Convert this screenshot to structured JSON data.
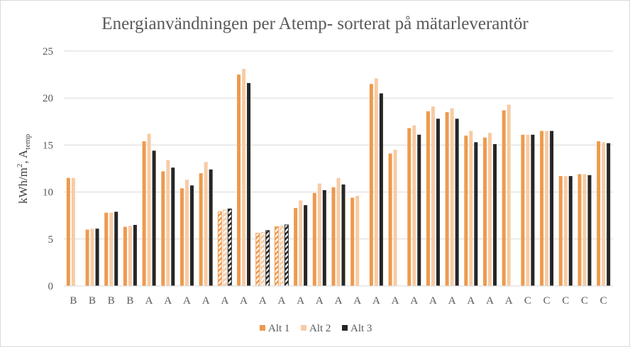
{
  "chart_data": {
    "type": "bar",
    "title": "Energianvändningen per Atemp- sorterat på mätarleverantör",
    "ylabel": "kWh/m², Atemp",
    "ylabel_main": "kWh/m",
    "ylabel_sup": "2",
    "ylabel_sep": ", A",
    "ylabel_sub": "temp",
    "xlabel": "",
    "ylim": [
      0,
      25
    ],
    "yticks": [
      "0",
      "5",
      "10",
      "15",
      "20",
      "25"
    ],
    "grid": "horizontal",
    "legend_position": "bottom",
    "categories": [
      "B",
      "B",
      "B",
      "B",
      "A",
      "A",
      "A",
      "A",
      "A",
      "A",
      "A",
      "A",
      "A",
      "A",
      "A",
      "A",
      "A",
      "A",
      "A",
      "A",
      "A",
      "A",
      "A",
      "A",
      "C",
      "C",
      "C",
      "C",
      "C"
    ],
    "hatched_indices": [
      8,
      10,
      11
    ],
    "series": [
      {
        "name": "Alt 1",
        "color": "#ED9A4E",
        "values": [
          11.5,
          6.0,
          7.8,
          6.3,
          15.4,
          12.2,
          10.4,
          12.0,
          7.9,
          22.5,
          5.6,
          6.3,
          8.3,
          9.9,
          10.5,
          9.4,
          21.5,
          14.1,
          16.8,
          18.6,
          18.5,
          16.0,
          15.8,
          18.7,
          16.1,
          16.5,
          11.7,
          11.9,
          15.4
        ]
      },
      {
        "name": "Alt 2",
        "color": "#F8CBA4",
        "values": [
          11.5,
          6.1,
          7.8,
          6.4,
          16.2,
          13.4,
          11.3,
          13.2,
          8.1,
          23.1,
          5.7,
          6.4,
          9.1,
          10.9,
          11.5,
          9.6,
          22.1,
          14.5,
          17.1,
          19.1,
          18.9,
          16.5,
          16.3,
          19.3,
          16.1,
          16.5,
          11.7,
          11.9,
          15.3
        ]
      },
      {
        "name": "Alt 3",
        "color": "#262626",
        "values": [
          null,
          6.1,
          7.9,
          6.5,
          14.4,
          12.6,
          10.7,
          12.4,
          8.2,
          21.6,
          5.9,
          6.5,
          8.6,
          10.2,
          10.8,
          null,
          20.5,
          null,
          16.1,
          17.8,
          17.8,
          15.3,
          15.1,
          null,
          16.1,
          16.5,
          11.7,
          11.8,
          15.2
        ]
      }
    ]
  }
}
